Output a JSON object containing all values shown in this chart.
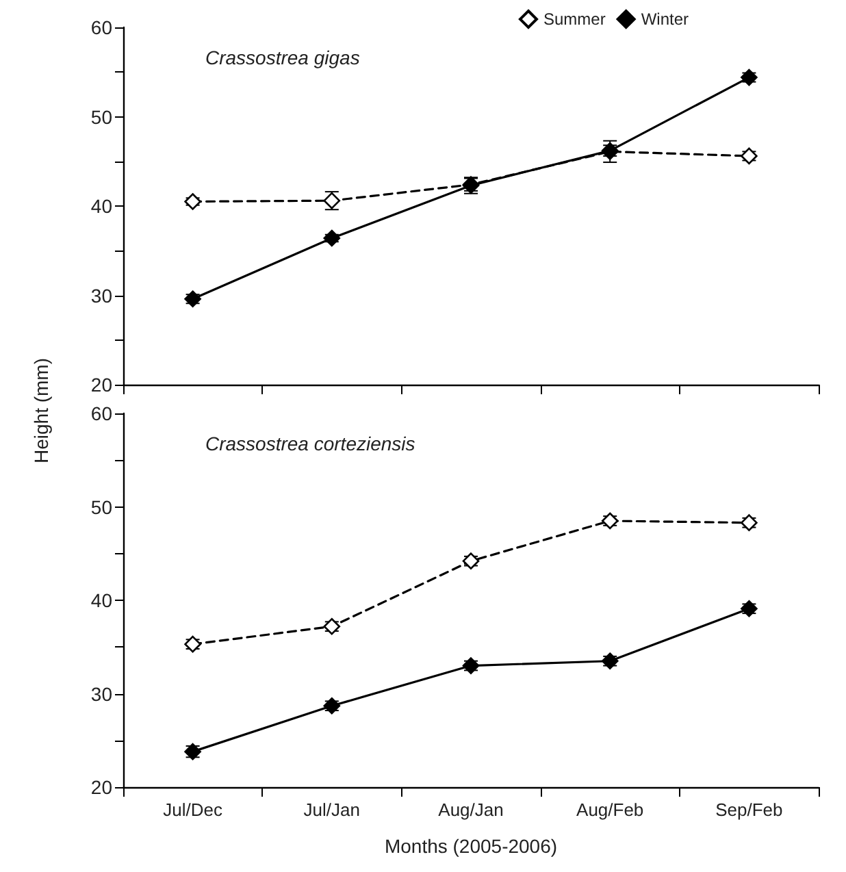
{
  "chart_data": [
    {
      "type": "line",
      "ylabel": "Height (mm)",
      "annotations": [
        "Crassostrea gigas"
      ],
      "categories": [
        null,
        null,
        null,
        null,
        null
      ],
      "series": [
        {
          "name": "Summer",
          "color": "#000000",
          "line_style": "dashed",
          "values": [
            40.5,
            40.6,
            42.4,
            46.1,
            45.6
          ],
          "errors": [
            0.4,
            1.0,
            0.7,
            1.2,
            0.5
          ]
        },
        {
          "name": "Winter",
          "color": "#000000",
          "line_style": "solid",
          "values": [
            29.6,
            36.4,
            42.3,
            46.2,
            54.4
          ],
          "errors": [
            0.5,
            0.4,
            0.9,
            0.6,
            0.5
          ]
        }
      ],
      "ylim": [
        20,
        60
      ],
      "yticks": [
        20,
        {
          "value": 25,
          "label": null
        },
        30,
        {
          "value": 35,
          "label": null
        },
        40,
        {
          "value": 45,
          "label": null
        },
        50,
        {
          "value": 55,
          "label": null
        },
        60
      ],
      "marker": "diamond",
      "legend": "top right",
      "tick_labels": "y",
      "grid": false
    },
    {
      "type": "line",
      "xlabel": "Months (2005-2006)",
      "annotations": [
        "Crassostrea corteziensis"
      ],
      "categories": [
        "Jul/Dec",
        "Jul/Jan",
        "Aug/Jan",
        "Aug/Feb",
        "Sep/Feb"
      ],
      "series": [
        {
          "color": "#000000",
          "line_style": "dashed",
          "values": [
            35.3,
            37.2,
            44.2,
            48.5,
            48.3
          ],
          "errors": [
            0.5,
            0.5,
            0.5,
            0.5,
            0.5
          ]
        },
        {
          "color": "#000000",
          "line_style": "solid",
          "values": [
            23.8,
            28.7,
            33.0,
            33.5,
            39.1
          ],
          "errors": [
            0.6,
            0.5,
            0.5,
            0.5,
            0.5
          ]
        }
      ],
      "ylim": [
        20,
        60
      ],
      "yticks": [
        20,
        {
          "value": 25,
          "label": null
        },
        30,
        {
          "value": 35,
          "label": null
        },
        40,
        {
          "value": 45,
          "label": null
        },
        50,
        {
          "value": 55,
          "label": null
        },
        60
      ],
      "marker": "diamond",
      "legend": false,
      "grid": false
    }
  ]
}
